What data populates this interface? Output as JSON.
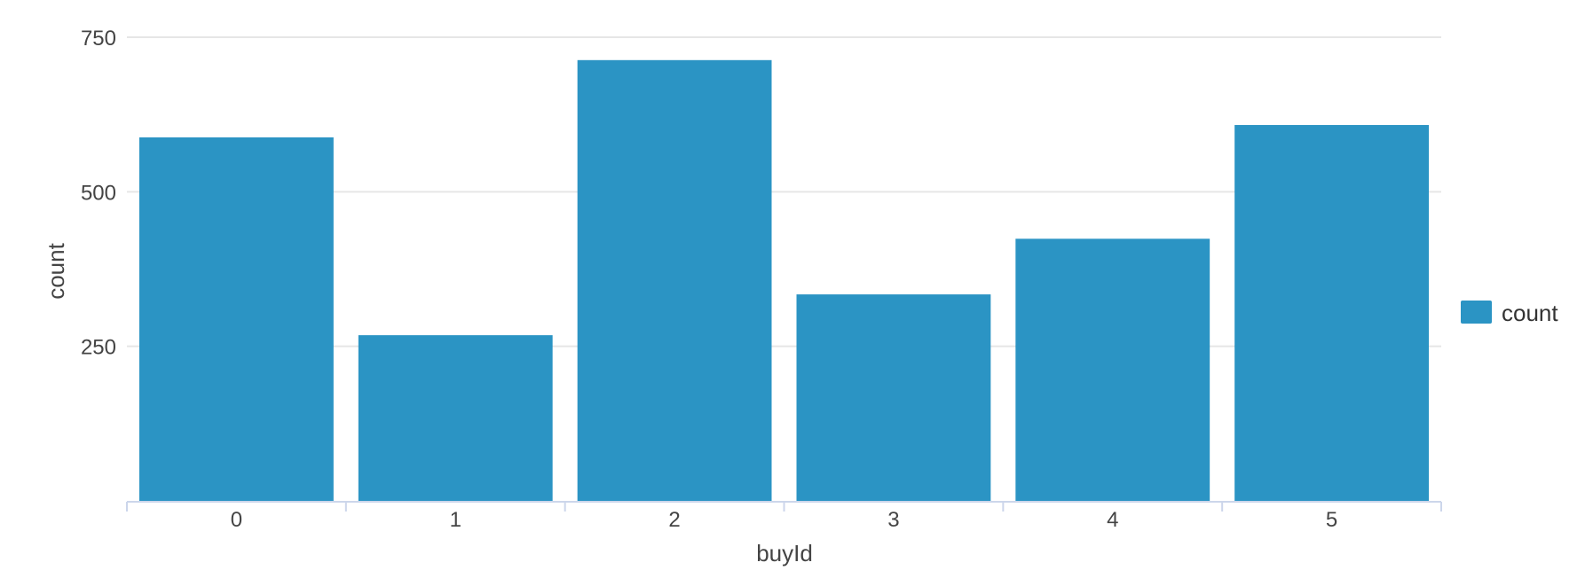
{
  "chart_data": {
    "type": "bar",
    "categories": [
      "0",
      "1",
      "2",
      "3",
      "4",
      "5"
    ],
    "series": [
      {
        "name": "count",
        "values": [
          588,
          268,
          713,
          334,
          424,
          608
        ],
        "color": "#2b94c4"
      }
    ],
    "xlabel": "buyId",
    "ylabel": "count",
    "ylim": [
      0,
      750
    ],
    "yticks": [
      250,
      500,
      750
    ],
    "grid": true,
    "legend": {
      "position": "right",
      "entries": [
        "count"
      ]
    }
  }
}
